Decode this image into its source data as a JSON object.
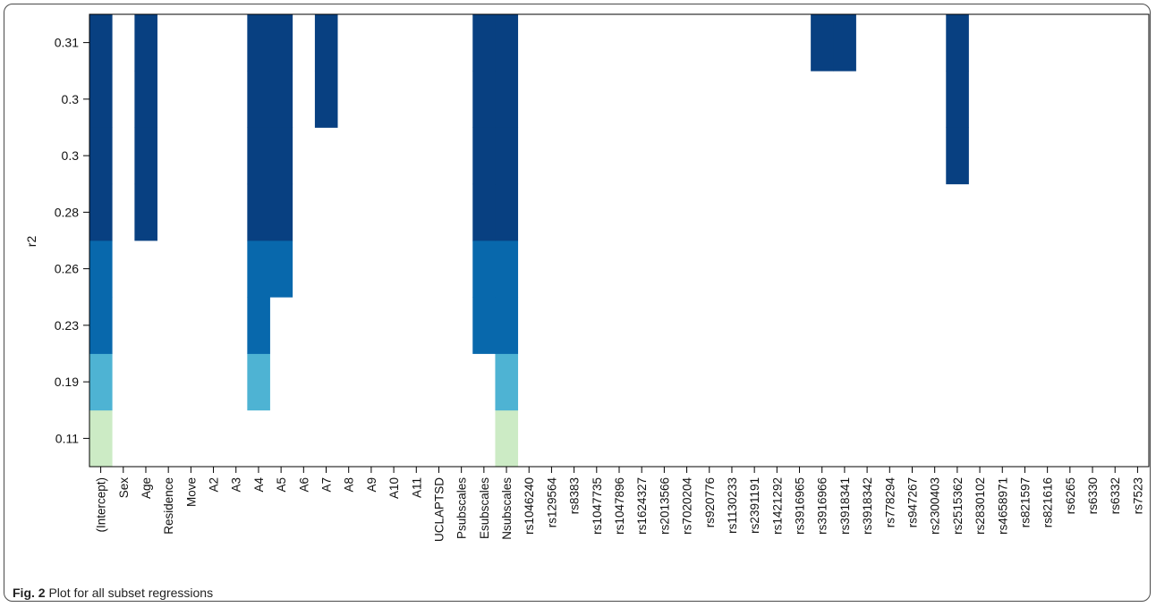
{
  "caption": {
    "label": "Fig. 2",
    "text": "Plot for all subset regressions"
  },
  "chart_data": {
    "type": "heatmap",
    "title": "",
    "xlabel": "",
    "ylabel": "r2",
    "variables": [
      "(Intercept)",
      "Sex",
      "Age",
      "Residence",
      "Move",
      "A2",
      "A3",
      "A4",
      "A5",
      "A6",
      "A7",
      "A8",
      "A9",
      "A10",
      "A11",
      "UCLAPTSD",
      "Psubscales",
      "Esubscales",
      "Nsubscales",
      "rs1046240",
      "rs129564",
      "rs8383",
      "rs1047735",
      "rs1047896",
      "rs1624327",
      "rs2013566",
      "rs7020204",
      "rs920776",
      "rs1130233",
      "rs2391191",
      "rs1421292",
      "rs3916965",
      "rs3916966",
      "rs3918341",
      "rs3918342",
      "rs778294",
      "rs947267",
      "rs2300403",
      "rs2515362",
      "rs2830102",
      "rs4658971",
      "rs821597",
      "rs821616",
      "rs6265",
      "rs6330",
      "rs6332",
      "rs7523"
    ],
    "rows_bottom_to_top": [
      "0.11",
      "0.19",
      "0.23",
      "0.26",
      "0.28",
      "0.3",
      "0.3",
      "0.31"
    ],
    "row_tick_labels": [
      "0.11",
      "0.19",
      "0.23",
      "0.26",
      "0.28",
      "0.3",
      "0.3",
      "0.31"
    ],
    "row_colors": [
      "#ccebc5",
      "#4eb3d3",
      "#0868ac",
      "#0868ac",
      "#084081",
      "#084081",
      "#084081",
      "#084081"
    ],
    "models": [
      {
        "r2": 0.11,
        "variables": [
          "(Intercept)",
          "Nsubscales"
        ]
      },
      {
        "r2": 0.19,
        "variables": [
          "(Intercept)",
          "A4",
          "Nsubscales"
        ]
      },
      {
        "r2": 0.23,
        "variables": [
          "(Intercept)",
          "A4",
          "Esubscales",
          "Nsubscales"
        ]
      },
      {
        "r2": 0.26,
        "variables": [
          "(Intercept)",
          "A4",
          "A5",
          "Esubscales",
          "Nsubscales"
        ]
      },
      {
        "r2": 0.28,
        "variables": [
          "(Intercept)",
          "Age",
          "A4",
          "A5",
          "Esubscales",
          "Nsubscales"
        ]
      },
      {
        "r2": 0.3,
        "variables": [
          "(Intercept)",
          "Age",
          "A4",
          "A5",
          "Esubscales",
          "Nsubscales",
          "rs2515362"
        ]
      },
      {
        "r2": 0.3,
        "variables": [
          "(Intercept)",
          "Age",
          "A4",
          "A5",
          "A7",
          "Esubscales",
          "Nsubscales",
          "rs2515362"
        ]
      },
      {
        "r2": 0.31,
        "variables": [
          "(Intercept)",
          "Age",
          "A4",
          "A5",
          "A7",
          "Esubscales",
          "Nsubscales",
          "rs3916966",
          "rs3918341",
          "rs2515362"
        ]
      }
    ],
    "cells": [
      {
        "var": "(Intercept)",
        "from": 0.11,
        "to": 0.31
      },
      {
        "var": "Age",
        "from": 0.28,
        "to": 0.31
      },
      {
        "var": "A4",
        "from": 0.19,
        "to": 0.31
      },
      {
        "var": "A5",
        "from": 0.26,
        "to": 0.31
      },
      {
        "var": "A7",
        "from": 0.3,
        "to": 0.3
      },
      {
        "var": "Esubscales",
        "from": 0.23,
        "to": 0.31
      },
      {
        "var": "Nsubscales",
        "from": 0.11,
        "to": 0.31
      },
      {
        "var": "rs3916966",
        "from": 0.31,
        "to": 0.31
      },
      {
        "var": "rs3918341",
        "from": 0.31,
        "to": 0.31
      },
      {
        "var": "rs2515362",
        "from": 0.3,
        "to": 0.31
      }
    ],
    "grid": false,
    "legend": "none"
  }
}
